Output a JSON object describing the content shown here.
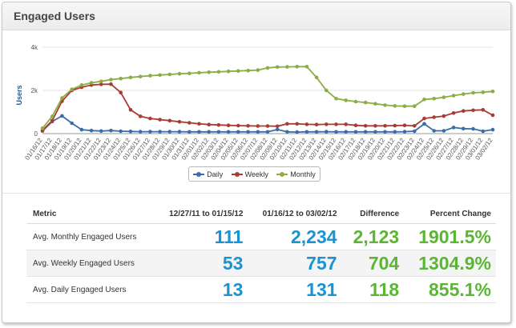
{
  "widget": {
    "title": "Engaged Users"
  },
  "colors": {
    "daily": "#3a6ea8",
    "weekly": "#a83c33",
    "monthly": "#8cac45",
    "blue_value": "#1b93d2",
    "green_value": "#5cb535"
  },
  "chart_data": {
    "type": "line",
    "ylabel": "Users",
    "ylim": [
      0,
      4000
    ],
    "yticks": [
      "0",
      "2k",
      "4k"
    ],
    "x": [
      "01/16/12",
      "01/17/12",
      "01/18/12",
      "01/19/12",
      "01/20/12",
      "01/21/12",
      "01/22/12",
      "01/23/12",
      "01/24/12",
      "01/25/12",
      "01/26/12",
      "01/27/12",
      "01/28/12",
      "01/29/12",
      "01/30/12",
      "01/31/12",
      "02/01/12",
      "02/02/12",
      "02/03/12",
      "02/04/12",
      "02/05/12",
      "02/06/12",
      "02/07/12",
      "02/08/12",
      "02/09/12",
      "02/10/12",
      "02/11/12",
      "02/12/12",
      "02/13/12",
      "02/14/12",
      "02/15/12",
      "02/16/12",
      "02/17/12",
      "02/18/12",
      "02/19/12",
      "02/20/12",
      "02/21/12",
      "02/22/12",
      "02/23/12",
      "02/24/12",
      "02/25/12",
      "02/26/12",
      "02/27/12",
      "02/28/12",
      "02/29/12",
      "03/01/12",
      "03/02/12"
    ],
    "series": [
      {
        "name": "Daily",
        "color": "#3a6ea8",
        "values": [
          120,
          560,
          820,
          480,
          180,
          140,
          120,
          140,
          110,
          100,
          90,
          90,
          90,
          90,
          90,
          80,
          80,
          80,
          80,
          80,
          80,
          80,
          80,
          80,
          190,
          80,
          70,
          80,
          80,
          90,
          80,
          80,
          80,
          80,
          80,
          80,
          80,
          90,
          110,
          450,
          130,
          130,
          280,
          230,
          220,
          110,
          180
        ]
      },
      {
        "name": "Weekly",
        "color": "#a83c33",
        "values": [
          150,
          600,
          1500,
          2000,
          2150,
          2250,
          2280,
          2290,
          1900,
          1100,
          800,
          700,
          650,
          600,
          550,
          500,
          450,
          420,
          400,
          380,
          370,
          360,
          350,
          350,
          340,
          450,
          450,
          430,
          420,
          430,
          430,
          430,
          380,
          360,
          360,
          360,
          370,
          380,
          360,
          700,
          760,
          810,
          950,
          1050,
          1080,
          1100,
          850
        ]
      },
      {
        "name": "Monthly",
        "color": "#8cac45",
        "values": [
          250,
          800,
          1650,
          2050,
          2250,
          2350,
          2420,
          2500,
          2550,
          2600,
          2640,
          2680,
          2710,
          2740,
          2770,
          2790,
          2820,
          2840,
          2860,
          2880,
          2900,
          2920,
          2940,
          3040,
          3080,
          3090,
          3100,
          3100,
          2600,
          2000,
          1620,
          1540,
          1480,
          1440,
          1380,
          1320,
          1280,
          1270,
          1270,
          1580,
          1620,
          1680,
          1760,
          1830,
          1890,
          1910,
          1950
        ]
      }
    ],
    "legend": [
      "Daily",
      "Weekly",
      "Monthly"
    ],
    "legend_position": "bottom-center"
  },
  "table": {
    "headers": [
      "Metric",
      "12/27/11 to 01/15/12",
      "01/16/12 to 03/02/12",
      "Difference",
      "Percent Change"
    ],
    "rows": [
      {
        "metric": "Avg. Monthly Engaged Users",
        "prev": "111",
        "curr": "2,234",
        "diff": "2,123",
        "pct": "1901.5%"
      },
      {
        "metric": "Avg. Weekly Engaged Users",
        "prev": "53",
        "curr": "757",
        "diff": "704",
        "pct": "1304.9%"
      },
      {
        "metric": "Avg. Daily Engaged Users",
        "prev": "13",
        "curr": "131",
        "diff": "118",
        "pct": "855.1%"
      }
    ]
  }
}
